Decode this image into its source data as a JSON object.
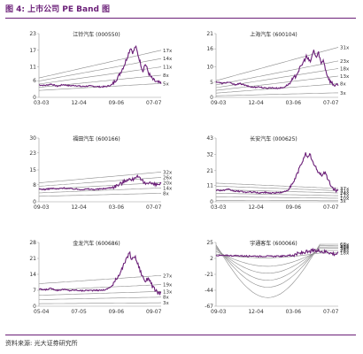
{
  "figure": {
    "title": "图 4: 上市公司 PE Band 图",
    "source": "资料来源: 光大证券研究所"
  },
  "colors": {
    "accent": "#6b1f78",
    "band": "#8c8c8c",
    "axis": "#999999"
  },
  "chart_data": [
    {
      "type": "line",
      "title": "江铃汽车 (000550)",
      "x_ticks": [
        "03-03",
        "12-04",
        "09-06",
        "07-07"
      ],
      "y_ticks": [
        0,
        6,
        11,
        17,
        23
      ],
      "ylim": [
        0,
        23
      ],
      "bands": [
        {
          "label": "5x",
          "start": 2.5,
          "end": 5
        },
        {
          "label": "8x",
          "start": 3.6,
          "end": 8
        },
        {
          "label": "11x",
          "start": 4.8,
          "end": 11
        },
        {
          "label": "14x",
          "start": 5.9,
          "end": 14
        },
        {
          "label": "17x",
          "start": 7.0,
          "end": 17
        }
      ],
      "price_keypoints": [
        [
          0,
          4.5
        ],
        [
          0.05,
          4.3
        ],
        [
          0.1,
          4.8
        ],
        [
          0.15,
          4.0
        ],
        [
          0.2,
          4.6
        ],
        [
          0.25,
          4.2
        ],
        [
          0.3,
          4.3
        ],
        [
          0.35,
          3.9
        ],
        [
          0.4,
          4.1
        ],
        [
          0.45,
          4.0
        ],
        [
          0.5,
          3.8
        ],
        [
          0.55,
          3.9
        ],
        [
          0.6,
          4.6
        ],
        [
          0.65,
          7.5
        ],
        [
          0.7,
          11.8
        ],
        [
          0.73,
          15.5
        ],
        [
          0.75,
          18.0
        ],
        [
          0.77,
          16.0
        ],
        [
          0.79,
          18.5
        ],
        [
          0.81,
          15.5
        ],
        [
          0.83,
          12.5
        ],
        [
          0.85,
          9.5
        ],
        [
          0.87,
          12.2
        ],
        [
          0.9,
          8.5
        ],
        [
          0.93,
          6.5
        ],
        [
          0.96,
          5.5
        ],
        [
          1,
          5.0
        ]
      ]
    },
    {
      "type": "line",
      "title": "上海汽车 (600104)",
      "x_ticks": [
        "09-03",
        "12-04",
        "03-06",
        "07-07"
      ],
      "y_ticks": [
        0,
        5,
        10,
        16,
        21
      ],
      "ylim": [
        0,
        21
      ],
      "bands": [
        {
          "label": "3x",
          "start": 0.5,
          "end": 1.5
        },
        {
          "label": "8x",
          "start": 1.4,
          "end": 4.5
        },
        {
          "label": "13x",
          "start": 2.3,
          "end": 7.0
        },
        {
          "label": "18x",
          "start": 3.2,
          "end": 9.5
        },
        {
          "label": "23x",
          "start": 4.1,
          "end": 12.0
        },
        {
          "label": "31x",
          "start": 5.5,
          "end": 16.5
        }
      ],
      "price_keypoints": [
        [
          0,
          5.2
        ],
        [
          0.05,
          4.6
        ],
        [
          0.1,
          5.0
        ],
        [
          0.15,
          4.2
        ],
        [
          0.2,
          4.5
        ],
        [
          0.25,
          3.8
        ],
        [
          0.3,
          3.3
        ],
        [
          0.35,
          3.5
        ],
        [
          0.4,
          3.0
        ],
        [
          0.45,
          3.2
        ],
        [
          0.5,
          3.0
        ],
        [
          0.55,
          3.2
        ],
        [
          0.6,
          4.5
        ],
        [
          0.65,
          7.0
        ],
        [
          0.7,
          10.5
        ],
        [
          0.74,
          13.5
        ],
        [
          0.77,
          11.5
        ],
        [
          0.8,
          15.5
        ],
        [
          0.82,
          13.0
        ],
        [
          0.84,
          14.8
        ],
        [
          0.86,
          11.0
        ],
        [
          0.88,
          12.5
        ],
        [
          0.9,
          8.5
        ],
        [
          0.93,
          5.5
        ],
        [
          0.96,
          4.2
        ],
        [
          1,
          3.8
        ]
      ]
    },
    {
      "type": "line",
      "title": "福田汽车 (600166)",
      "x_ticks": [
        "09-03",
        "12-04",
        "03-06",
        "07-07"
      ],
      "y_ticks": [
        0,
        8,
        15,
        23,
        30
      ],
      "ylim": [
        0,
        30
      ],
      "bands": [
        {
          "label": "8x",
          "start": 2.6,
          "end": 4.0
        },
        {
          "label": "14x",
          "start": 4.2,
          "end": 6.5
        },
        {
          "label": "20x",
          "start": 5.8,
          "end": 9.0
        },
        {
          "label": "26x",
          "start": 7.3,
          "end": 11.5
        },
        {
          "label": "32x",
          "start": 8.9,
          "end": 14.0
        }
      ],
      "price_keypoints": [
        [
          0,
          6.0
        ],
        [
          0.05,
          5.8
        ],
        [
          0.1,
          6.3
        ],
        [
          0.15,
          6.0
        ],
        [
          0.2,
          6.5
        ],
        [
          0.25,
          6.2
        ],
        [
          0.3,
          6.0
        ],
        [
          0.35,
          5.8
        ],
        [
          0.4,
          6.0
        ],
        [
          0.45,
          5.8
        ],
        [
          0.5,
          6.0
        ],
        [
          0.55,
          6.3
        ],
        [
          0.6,
          6.8
        ],
        [
          0.65,
          8.0
        ],
        [
          0.7,
          9.5
        ],
        [
          0.73,
          11.0
        ],
        [
          0.76,
          10.0
        ],
        [
          0.79,
          12.0
        ],
        [
          0.81,
          11.5
        ],
        [
          0.84,
          10.0
        ],
        [
          0.87,
          8.5
        ],
        [
          0.9,
          9.5
        ],
        [
          0.93,
          8.2
        ],
        [
          0.96,
          8.0
        ],
        [
          1,
          8.5
        ]
      ]
    },
    {
      "type": "line",
      "title": "长安汽车 (000625)",
      "x_ticks": [
        "03-03",
        "12-04",
        "09-06",
        "07-07"
      ],
      "y_ticks": [
        0,
        11,
        21,
        32,
        43
      ],
      "ylim": [
        0,
        43
      ],
      "bands": [
        {
          "label": "3x",
          "start": 1.0,
          "end": 0.7
        },
        {
          "label": "10x",
          "start": 3.4,
          "end": 2.4
        },
        {
          "label": "17x",
          "start": 5.8,
          "end": 4.1
        },
        {
          "label": "24x",
          "start": 8.2,
          "end": 6.0
        },
        {
          "label": "31x",
          "start": 10.6,
          "end": 7.5
        },
        {
          "label": "37x",
          "start": 12.6,
          "end": 9.0
        }
      ],
      "price_keypoints": [
        [
          0,
          8.0
        ],
        [
          0.05,
          7.6
        ],
        [
          0.1,
          8.3
        ],
        [
          0.15,
          7.2
        ],
        [
          0.2,
          7.0
        ],
        [
          0.25,
          6.4
        ],
        [
          0.3,
          6.6
        ],
        [
          0.35,
          6.0
        ],
        [
          0.4,
          6.3
        ],
        [
          0.45,
          5.9
        ],
        [
          0.5,
          6.1
        ],
        [
          0.55,
          6.4
        ],
        [
          0.6,
          8.5
        ],
        [
          0.64,
          14.0
        ],
        [
          0.68,
          22.0
        ],
        [
          0.71,
          28.0
        ],
        [
          0.73,
          33.0
        ],
        [
          0.75,
          29.0
        ],
        [
          0.77,
          32.0
        ],
        [
          0.8,
          25.0
        ],
        [
          0.83,
          21.0
        ],
        [
          0.86,
          18.0
        ],
        [
          0.89,
          20.0
        ],
        [
          0.92,
          14.5
        ],
        [
          0.95,
          9.5
        ],
        [
          1,
          7.0
        ]
      ]
    },
    {
      "type": "line",
      "title": "金龙汽车 (600686)",
      "x_ticks": [
        "05-04",
        "07-05",
        "09-06",
        "09-07"
      ],
      "y_ticks": [
        0,
        7,
        14,
        21,
        28
      ],
      "ylim": [
        0,
        28
      ],
      "bands": [
        {
          "label": "3x",
          "start": 1.1,
          "end": 1.5
        },
        {
          "label": "8x",
          "start": 2.9,
          "end": 4.0
        },
        {
          "label": "13x",
          "start": 4.8,
          "end": 6.5
        },
        {
          "label": "19x",
          "start": 7.0,
          "end": 9.5
        },
        {
          "label": "27x",
          "start": 9.9,
          "end": 13.5
        }
      ],
      "price_keypoints": [
        [
          0,
          7.5
        ],
        [
          0.05,
          7.2
        ],
        [
          0.1,
          7.8
        ],
        [
          0.15,
          7.0
        ],
        [
          0.2,
          7.4
        ],
        [
          0.25,
          6.9
        ],
        [
          0.3,
          7.1
        ],
        [
          0.35,
          6.8
        ],
        [
          0.4,
          7.0
        ],
        [
          0.45,
          6.9
        ],
        [
          0.5,
          7.0
        ],
        [
          0.55,
          7.3
        ],
        [
          0.6,
          9.0
        ],
        [
          0.64,
          12.5
        ],
        [
          0.68,
          16.5
        ],
        [
          0.72,
          21.0
        ],
        [
          0.74,
          24.0
        ],
        [
          0.76,
          20.0
        ],
        [
          0.78,
          22.5
        ],
        [
          0.81,
          18.5
        ],
        [
          0.84,
          14.0
        ],
        [
          0.87,
          11.0
        ],
        [
          0.9,
          12.5
        ],
        [
          0.93,
          8.5
        ],
        [
          0.96,
          6.5
        ],
        [
          1,
          5.5
        ]
      ]
    },
    {
      "type": "line",
      "title": "宇通客车 (600066)",
      "x_ticks": [
        "09-03",
        "12-04",
        "03-06",
        "07-07"
      ],
      "y_ticks": [
        25,
        2,
        -21,
        -44,
        -67
      ],
      "ylim": [
        -67,
        25
      ],
      "bands": [
        {
          "label": "18x",
          "start": 8.0,
          "end": 10.0
        },
        {
          "label": "28x",
          "start": 12.0,
          "end": 13.5
        },
        {
          "label": "38x",
          "start": 15.0,
          "end": 16.5
        },
        {
          "label": "48x",
          "start": 17.5,
          "end": 18.5
        },
        {
          "label": "58x",
          "start": 19.5,
          "end": 20.5
        },
        {
          "label": "68x",
          "start": 21.5,
          "end": 22.5
        }
      ],
      "band_dip_pe": [
        {
          "label": "18x",
          "min": 2.0
        },
        {
          "label": "28x",
          "min": -10.0
        },
        {
          "label": "38x",
          "min": -20.0
        },
        {
          "label": "48x",
          "min": -30.0
        },
        {
          "label": "58x",
          "min": -40.0
        },
        {
          "label": "68x",
          "min": -55.0
        }
      ],
      "price_keypoints": [
        [
          0,
          6.5
        ],
        [
          0.05,
          6.0
        ],
        [
          0.1,
          6.3
        ],
        [
          0.15,
          5.8
        ],
        [
          0.2,
          5.9
        ],
        [
          0.25,
          5.3
        ],
        [
          0.3,
          5.6
        ],
        [
          0.35,
          5.1
        ],
        [
          0.4,
          5.3
        ],
        [
          0.45,
          5.0
        ],
        [
          0.5,
          5.1
        ],
        [
          0.55,
          5.4
        ],
        [
          0.6,
          6.3
        ],
        [
          0.65,
          7.8
        ],
        [
          0.7,
          9.5
        ],
        [
          0.73,
          11.5
        ],
        [
          0.76,
          10.5
        ],
        [
          0.79,
          13.5
        ],
        [
          0.82,
          12.0
        ],
        [
          0.85,
          13.8
        ],
        [
          0.88,
          11.0
        ],
        [
          0.91,
          12.5
        ],
        [
          0.94,
          9.5
        ],
        [
          0.97,
          8.5
        ],
        [
          1,
          9.0
        ]
      ]
    }
  ]
}
